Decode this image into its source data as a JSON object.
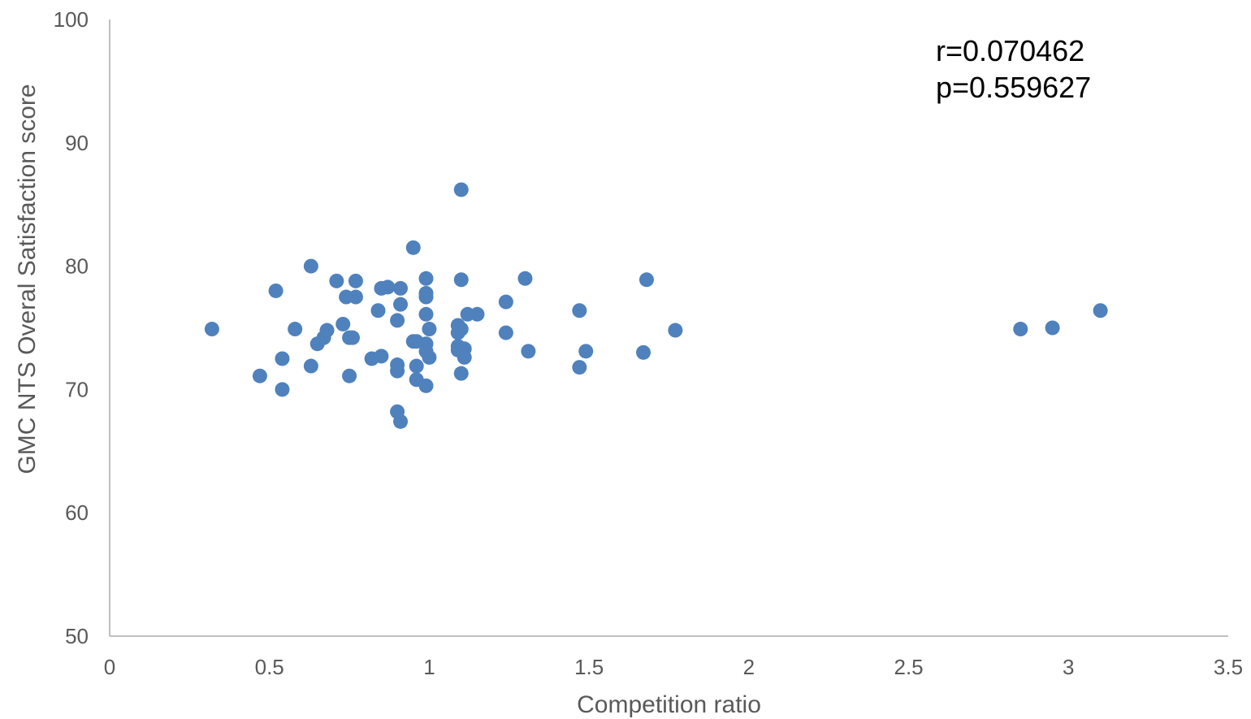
{
  "chart_data": {
    "type": "scatter",
    "title": "",
    "xlabel": "Competition ratio",
    "ylabel": "GMC NTS Overal Satisfaction score",
    "xlim": [
      0,
      3.5
    ],
    "ylim": [
      50,
      100
    ],
    "x_ticks": [
      "0",
      "0.5",
      "1",
      "1.5",
      "2",
      "2.5",
      "3",
      "3.5"
    ],
    "y_ticks": [
      "50",
      "60",
      "70",
      "80",
      "90",
      "100"
    ],
    "grid": false,
    "marker_color": "#4f81bd",
    "annotations": [
      "r=0.070462",
      "p=0.559627"
    ],
    "points": [
      {
        "x": 0.32,
        "y": 74.9
      },
      {
        "x": 0.47,
        "y": 71.1
      },
      {
        "x": 0.52,
        "y": 78.0
      },
      {
        "x": 0.54,
        "y": 72.5
      },
      {
        "x": 0.54,
        "y": 70.0
      },
      {
        "x": 0.58,
        "y": 74.9
      },
      {
        "x": 0.63,
        "y": 80.0
      },
      {
        "x": 0.63,
        "y": 71.9
      },
      {
        "x": 0.65,
        "y": 73.7
      },
      {
        "x": 0.67,
        "y": 74.2
      },
      {
        "x": 0.68,
        "y": 74.8
      },
      {
        "x": 0.71,
        "y": 78.8
      },
      {
        "x": 0.73,
        "y": 75.3
      },
      {
        "x": 0.74,
        "y": 77.5
      },
      {
        "x": 0.75,
        "y": 74.2
      },
      {
        "x": 0.75,
        "y": 71.1
      },
      {
        "x": 0.76,
        "y": 74.2
      },
      {
        "x": 0.77,
        "y": 78.8
      },
      {
        "x": 0.77,
        "y": 77.5
      },
      {
        "x": 0.82,
        "y": 72.5
      },
      {
        "x": 0.84,
        "y": 76.4
      },
      {
        "x": 0.85,
        "y": 78.2
      },
      {
        "x": 0.85,
        "y": 72.7
      },
      {
        "x": 0.87,
        "y": 78.3
      },
      {
        "x": 0.9,
        "y": 75.6
      },
      {
        "x": 0.9,
        "y": 72.0
      },
      {
        "x": 0.9,
        "y": 71.5
      },
      {
        "x": 0.9,
        "y": 68.2
      },
      {
        "x": 0.91,
        "y": 78.2
      },
      {
        "x": 0.91,
        "y": 76.9
      },
      {
        "x": 0.91,
        "y": 67.4
      },
      {
        "x": 0.95,
        "y": 81.5
      },
      {
        "x": 0.95,
        "y": 73.9
      },
      {
        "x": 0.96,
        "y": 73.9
      },
      {
        "x": 0.96,
        "y": 71.9
      },
      {
        "x": 0.96,
        "y": 70.8
      },
      {
        "x": 0.99,
        "y": 79.0
      },
      {
        "x": 0.99,
        "y": 77.8
      },
      {
        "x": 0.99,
        "y": 77.5
      },
      {
        "x": 0.99,
        "y": 76.1
      },
      {
        "x": 0.99,
        "y": 73.7
      },
      {
        "x": 0.99,
        "y": 73.1
      },
      {
        "x": 0.99,
        "y": 70.3
      },
      {
        "x": 1.0,
        "y": 74.9
      },
      {
        "x": 1.0,
        "y": 72.6
      },
      {
        "x": 1.09,
        "y": 75.2
      },
      {
        "x": 1.09,
        "y": 74.6
      },
      {
        "x": 1.09,
        "y": 73.5
      },
      {
        "x": 1.09,
        "y": 73.2
      },
      {
        "x": 1.1,
        "y": 86.2
      },
      {
        "x": 1.1,
        "y": 78.9
      },
      {
        "x": 1.1,
        "y": 74.9
      },
      {
        "x": 1.1,
        "y": 71.3
      },
      {
        "x": 1.11,
        "y": 73.3
      },
      {
        "x": 1.11,
        "y": 72.6
      },
      {
        "x": 1.12,
        "y": 76.1
      },
      {
        "x": 1.15,
        "y": 76.1
      },
      {
        "x": 1.24,
        "y": 77.1
      },
      {
        "x": 1.24,
        "y": 74.6
      },
      {
        "x": 1.3,
        "y": 79.0
      },
      {
        "x": 1.31,
        "y": 73.1
      },
      {
        "x": 1.47,
        "y": 76.4
      },
      {
        "x": 1.47,
        "y": 71.8
      },
      {
        "x": 1.49,
        "y": 73.1
      },
      {
        "x": 1.67,
        "y": 73.0
      },
      {
        "x": 1.68,
        "y": 78.9
      },
      {
        "x": 1.77,
        "y": 74.8
      },
      {
        "x": 2.85,
        "y": 74.9
      },
      {
        "x": 2.95,
        "y": 75.0
      },
      {
        "x": 3.1,
        "y": 76.4
      }
    ]
  }
}
